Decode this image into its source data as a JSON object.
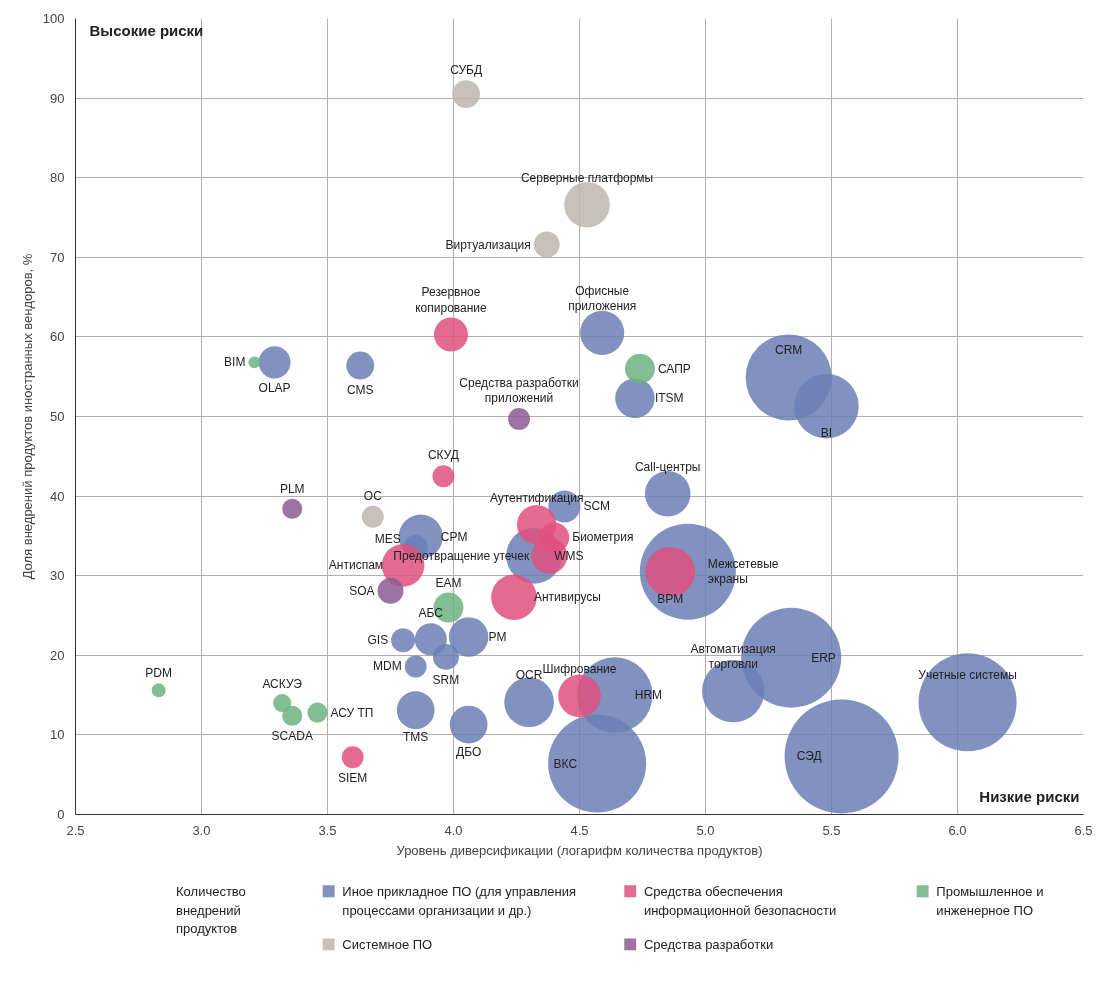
{
  "chart_data": {
    "type": "bubble",
    "xlabel": "Уровень диверсификации (логарифм количества продуктов)",
    "ylabel": "Доля внедрений продуктов иностранных вендоров, %",
    "xlim": [
      2.5,
      6.5
    ],
    "ylim": [
      0,
      100
    ],
    "xticks": [
      2.5,
      {
        "value": 3,
        "label": "3.0"
      },
      3.5,
      {
        "value": 4,
        "label": "4.0"
      },
      4.5,
      {
        "value": 5,
        "label": "5.0"
      },
      5.5,
      {
        "value": 6,
        "label": "6.0"
      },
      6.5
    ],
    "yticks": [
      0,
      10,
      20,
      30,
      40,
      50,
      60,
      70,
      80,
      90,
      100
    ],
    "grid": true,
    "legend": "bottom",
    "marker": "circle",
    "legend_title": "Количество внедрений продуктов",
    "series": [
      {
        "name": "Иное прикладное ПО (для управления процессами организации и др.)",
        "color": "#6b7fb5",
        "x": [
          3.29,
          3.63,
          4.59,
          4.72,
          5.33,
          5.48,
          4.85,
          4.44,
          3.87,
          3.85,
          4.32,
          4.93,
          3.91,
          3.8,
          4.06,
          3.97,
          3.85,
          3.85,
          4.06,
          4.3,
          4.57,
          4.64,
          5.11,
          5.34,
          5.54,
          6.04
        ],
        "values": [
          56.8,
          56.4,
          60.5,
          52.3,
          54.9,
          51.3,
          40.3,
          38.7,
          34.9,
          33.6,
          32.5,
          30.5,
          22,
          21.9,
          22.3,
          19.8,
          18.6,
          13.1,
          11.3,
          14.1,
          6.4,
          15,
          15.5,
          19.7,
          7.3,
          14.1
        ],
        "sizes": [
          0.079,
          0.06,
          0.15,
          0.12,
          0.57,
          0.32,
          0.16,
          0.079,
          0.15,
          0.044,
          0.24,
          0.71,
          0.079,
          0.044,
          0.12,
          0.052,
          0.037,
          0.11,
          0.11,
          0.19,
          0.74,
          0.44,
          0.3,
          0.77,
          1,
          0.74
        ]
      },
      {
        "name": "Средства обеспечения информационной безопасности",
        "color": "#e0507f",
        "x": [
          3.99,
          3.96,
          3.6,
          4.33,
          4.4,
          4.38,
          4.86,
          3.8,
          4.24,
          4.5
        ],
        "values": [
          60.3,
          42.5,
          7.2,
          36.4,
          34.8,
          32.5,
          30.5,
          31.3,
          27.3,
          14.9
        ],
        "sizes": [
          0.089,
          0.037,
          0.037,
          0.12,
          0.069,
          0.1,
          0.19,
          0.14,
          0.16,
          0.14
        ]
      },
      {
        "name": "Промышленное и инженерное ПО",
        "color": "#6db37f",
        "x": [
          3.21,
          4.74,
          2.83,
          3.32,
          3.36,
          3.46,
          3.98
        ],
        "values": [
          56.8,
          56,
          15.6,
          14,
          12.4,
          12.8,
          26
        ],
        "sizes": [
          0.011,
          0.069,
          0.015,
          0.025,
          0.031,
          0.031,
          0.069
        ]
      },
      {
        "name": "Системное ПО",
        "color": "#bdb6b0",
        "x": [
          4.05,
          4.53,
          4.37,
          3.68
        ],
        "values": [
          90.5,
          76.6,
          71.6,
          37.4
        ],
        "sizes": [
          0.06,
          0.16,
          0.052,
          0.037
        ]
      },
      {
        "name": "Средства разработки",
        "color": "#8c5a92",
        "x": [
          3.36,
          4.26,
          3.75
        ],
        "values": [
          38.4,
          49.7,
          28.1
        ],
        "sizes": [
          0.031,
          0.037,
          0.052
        ]
      }
    ],
    "annotations": [
      "Высокие риски",
      "Низкие риски",
      {
        "text": "OLAP",
        "x": 3.29,
        "y": 56.8
      },
      {
        "text": "CMS",
        "x": 3.63,
        "y": 56.4
      },
      {
        "text": "Офисные приложения",
        "x": 4.59,
        "y": 60.5
      },
      {
        "text": "ITSM",
        "x": 4.72,
        "y": 52.3
      },
      {
        "text": "CRM",
        "x": 5.33,
        "y": 54.9
      },
      {
        "text": "BI",
        "x": 5.48,
        "y": 51.3
      },
      {
        "text": "Call-центры",
        "x": 4.85,
        "y": 40.3
      },
      {
        "text": "SCM",
        "x": 4.44,
        "y": 38.7
      },
      {
        "text": "CPM",
        "x": 3.87,
        "y": 34.9
      },
      {
        "text": "MES",
        "x": 3.85,
        "y": 33.6
      },
      {
        "text": "WMS",
        "x": 4.32,
        "y": 32.5
      },
      {
        "text": "Межсетевые экраны",
        "x": 4.93,
        "y": 30.5
      },
      {
        "text": "АБС",
        "x": 3.91,
        "y": 22
      },
      {
        "text": "GIS",
        "x": 3.8,
        "y": 21.9
      },
      {
        "text": "PM",
        "x": 4.06,
        "y": 22.3
      },
      {
        "text": "SRM",
        "x": 3.97,
        "y": 19.8
      },
      {
        "text": "MDM",
        "x": 3.85,
        "y": 18.6
      },
      {
        "text": "TMS",
        "x": 3.85,
        "y": 13.1
      },
      {
        "text": "ДБО",
        "x": 4.06,
        "y": 11.3
      },
      {
        "text": "OCR",
        "x": 4.3,
        "y": 14.1
      },
      {
        "text": "ВКС",
        "x": 4.57,
        "y": 6.4
      },
      {
        "text": "HRM",
        "x": 4.64,
        "y": 15
      },
      {
        "text": "Автоматизация торговли",
        "x": 5.11,
        "y": 15.5
      },
      {
        "text": "ERP",
        "x": 5.34,
        "y": 19.7
      },
      {
        "text": "СЭД",
        "x": 5.54,
        "y": 7.3
      },
      {
        "text": "Учетные системы",
        "x": 6.04,
        "y": 14.1
      },
      {
        "text": "Резервное копирование",
        "x": 3.99,
        "y": 60.3
      },
      {
        "text": "СКУД",
        "x": 3.96,
        "y": 42.5
      },
      {
        "text": "SIEM",
        "x": 3.6,
        "y": 7.2
      },
      {
        "text": "Аутентификация",
        "x": 4.33,
        "y": 36.4
      },
      {
        "text": "Биометрия",
        "x": 4.4,
        "y": 34.8
      },
      {
        "text": "Предотвращение утечек",
        "x": 4.38,
        "y": 32.5
      },
      {
        "text": "BPM",
        "x": 4.86,
        "y": 30.5
      },
      {
        "text": "Антиспам",
        "x": 3.8,
        "y": 31.3
      },
      {
        "text": "Антивирусы",
        "x": 4.24,
        "y": 27.3
      },
      {
        "text": "Шифрование",
        "x": 4.5,
        "y": 14.9
      },
      {
        "text": "BIM",
        "x": 3.21,
        "y": 56.8
      },
      {
        "text": "САПР",
        "x": 4.74,
        "y": 56
      },
      {
        "text": "PDM",
        "x": 2.83,
        "y": 15.6
      },
      {
        "text": "АСКУЭ",
        "x": 3.32,
        "y": 14
      },
      {
        "text": "SCADA",
        "x": 3.36,
        "y": 12.4
      },
      {
        "text": "АСУ ТП",
        "x": 3.46,
        "y": 12.8
      },
      {
        "text": "EAM",
        "x": 3.98,
        "y": 26
      },
      {
        "text": "СУБД",
        "x": 4.05,
        "y": 90.5
      },
      {
        "text": "Серверные платформы",
        "x": 4.53,
        "y": 76.6
      },
      {
        "text": "Виртуализация",
        "x": 4.37,
        "y": 71.6
      },
      {
        "text": "ОС",
        "x": 3.68,
        "y": 37.4
      },
      {
        "text": "PLM",
        "x": 3.36,
        "y": 38.4
      },
      {
        "text": "Средства разработки приложений",
        "x": 4.26,
        "y": 49.7
      },
      {
        "text": "SOA",
        "x": 3.75,
        "y": 28.1
      }
    ]
  }
}
